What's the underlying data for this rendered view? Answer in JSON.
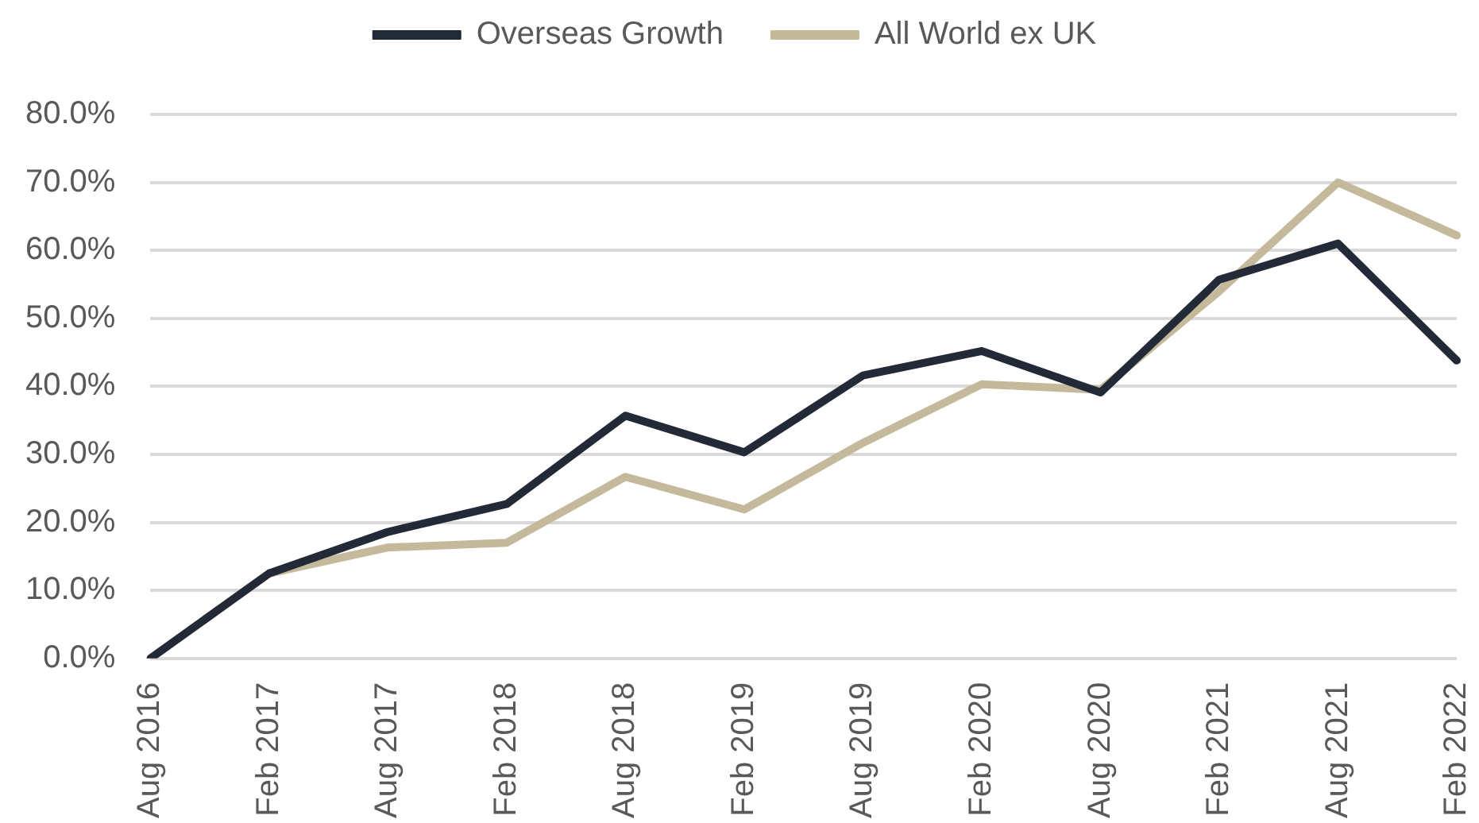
{
  "chart_data": {
    "type": "line",
    "categories": [
      "Aug 2016",
      "Feb 2017",
      "Aug 2017",
      "Feb 2018",
      "Aug 2018",
      "Feb 2019",
      "Aug 2019",
      "Feb 2020",
      "Aug 2020",
      "Feb 2021",
      "Aug 2021",
      "Feb 2022"
    ],
    "series": [
      {
        "name": "Overseas Growth",
        "color": "#212a36",
        "values": [
          0,
          12.5,
          18.6,
          22.7,
          35.7,
          30.3,
          41.6,
          45.2,
          39.1,
          55.7,
          61.0,
          43.8
        ]
      },
      {
        "name": "All World ex UK",
        "color": "#c5b99b",
        "values": [
          0,
          12.5,
          16.3,
          17.0,
          26.7,
          21.9,
          31.7,
          40.3,
          39.5,
          54.0,
          70.0,
          62.2
        ]
      }
    ],
    "ylim": [
      0,
      80
    ],
    "yticks": [
      {
        "value": 0,
        "label": "0.0%"
      },
      {
        "value": 10,
        "label": "10.0%"
      },
      {
        "value": 20,
        "label": "20.0%"
      },
      {
        "value": 30,
        "label": "30.0%"
      },
      {
        "value": 40,
        "label": "40.0%"
      },
      {
        "value": 50,
        "label": "50.0%"
      },
      {
        "value": 60,
        "label": "60.0%"
      },
      {
        "value": 70,
        "label": "70.0%"
      },
      {
        "value": 80,
        "label": "80.0%"
      }
    ],
    "grid": "y",
    "legend": "top",
    "marker": "none",
    "line_style": "solid"
  }
}
